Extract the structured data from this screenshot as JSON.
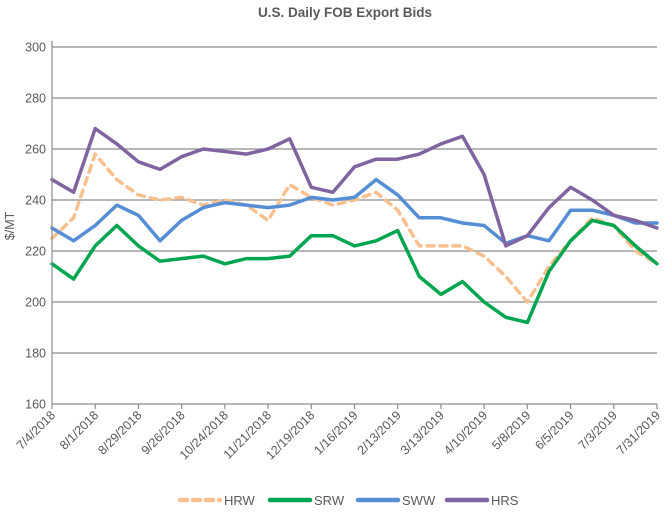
{
  "chart_data": {
    "type": "line",
    "title": "U.S. Daily FOB Export Bids",
    "xlabel": "",
    "ylabel": "$/MT",
    "ylim": [
      160,
      300
    ],
    "yticks": [
      160,
      180,
      200,
      220,
      240,
      260,
      280,
      300
    ],
    "xtick_labels": [
      "7/4/2018",
      "8/1/2018",
      "8/29/2018",
      "9/26/2018",
      "10/24/2018",
      "11/21/2018",
      "12/19/2018",
      "1/16/2019",
      "2/13/2019",
      "3/13/2019",
      "4/10/2019",
      "5/8/2019",
      "6/5/2019",
      "7/3/2019",
      "7/31/2019"
    ],
    "grid": true,
    "legend": "bottom",
    "x": [
      "7/4/2018",
      "7/18/2018",
      "8/1/2018",
      "8/15/2018",
      "8/29/2018",
      "9/12/2018",
      "9/26/2018",
      "10/10/2018",
      "10/24/2018",
      "11/7/2018",
      "11/21/2018",
      "12/5/2018",
      "12/19/2018",
      "1/2/2019",
      "1/16/2019",
      "1/30/2019",
      "2/13/2019",
      "2/27/2019",
      "3/13/2019",
      "3/27/2019",
      "4/10/2019",
      "4/24/2019",
      "5/8/2019",
      "5/22/2019",
      "6/5/2019",
      "6/19/2019",
      "7/3/2019",
      "7/17/2019",
      "7/31/2019"
    ],
    "series": [
      {
        "name": "HRW",
        "color": "#F9C08F",
        "dashed": true,
        "values": [
          225,
          233,
          258,
          248,
          242,
          240,
          241,
          238,
          240,
          238,
          232,
          246,
          241,
          238,
          240,
          243,
          236,
          222,
          222,
          222,
          218,
          210,
          200,
          214,
          224,
          233,
          230,
          220,
          215
        ]
      },
      {
        "name": "SRW",
        "color": "#00A64F",
        "dashed": false,
        "values": [
          215,
          209,
          222,
          230,
          222,
          216,
          217,
          218,
          215,
          217,
          217,
          218,
          226,
          226,
          222,
          224,
          228,
          210,
          203,
          208,
          200,
          194,
          192,
          212,
          224,
          232,
          230,
          222,
          215
        ]
      },
      {
        "name": "SWW",
        "color": "#558ED5",
        "dashed": false,
        "values": [
          229,
          224,
          230,
          238,
          234,
          224,
          232,
          237,
          239,
          238,
          237,
          238,
          241,
          240,
          241,
          248,
          242,
          233,
          233,
          231,
          230,
          223,
          226,
          224,
          236,
          236,
          234,
          231,
          231
        ]
      },
      {
        "name": "HRS",
        "color": "#8064A2",
        "dashed": false,
        "values": [
          248,
          243,
          268,
          262,
          255,
          252,
          257,
          260,
          259,
          258,
          260,
          264,
          245,
          243,
          253,
          256,
          256,
          258,
          262,
          265,
          250,
          222,
          226,
          237,
          245,
          240,
          234,
          232,
          229
        ]
      }
    ]
  }
}
